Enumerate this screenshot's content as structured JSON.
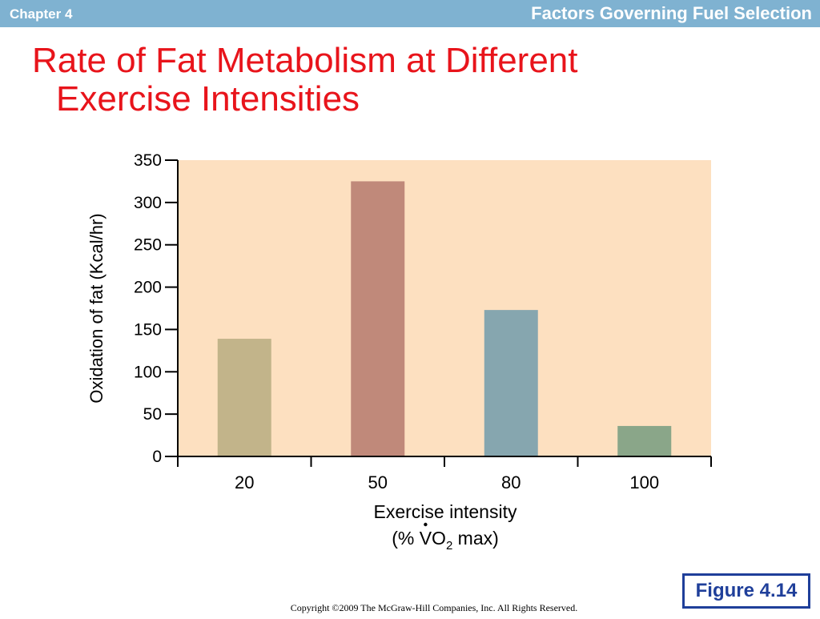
{
  "header": {
    "chapter": "Chapter 4",
    "section": "Factors Governing Fuel Selection"
  },
  "slide": {
    "title_line1": "Rate of Fat Metabolism at Different",
    "title_line2": "Exercise Intensities"
  },
  "chart_data": {
    "type": "bar",
    "title": "",
    "categories": [
      "20",
      "50",
      "80",
      "100"
    ],
    "values": [
      139,
      325,
      173,
      36
    ],
    "bar_colors": [
      "#c2b48a",
      "#c0897a",
      "#86a6af",
      "#8aa689"
    ],
    "ylabel": "Oxidation of fat (Kcal/hr)",
    "xlabel_line1": "Exercise intensity",
    "xlabel_line2_prefix": "(% ",
    "xlabel_line2_v": "V",
    "xlabel_line2_o": "O",
    "xlabel_line2_sub": "2",
    "xlabel_line2_suffix": " max)",
    "ylim": [
      0,
      350
    ],
    "yticks": [
      0,
      50,
      100,
      150,
      200,
      250,
      300,
      350
    ],
    "plot_background": "#fde0c0",
    "grid": false,
    "legend": "none"
  },
  "figure_label": "Figure 4.14",
  "copyright": "Copyright ©2009 The McGraw-Hill Companies, Inc. All Rights Reserved.",
  "colors": {
    "header_bar": "#7fb2d1",
    "title_red": "#e8141b",
    "figure_blue": "#1f3f9a"
  }
}
